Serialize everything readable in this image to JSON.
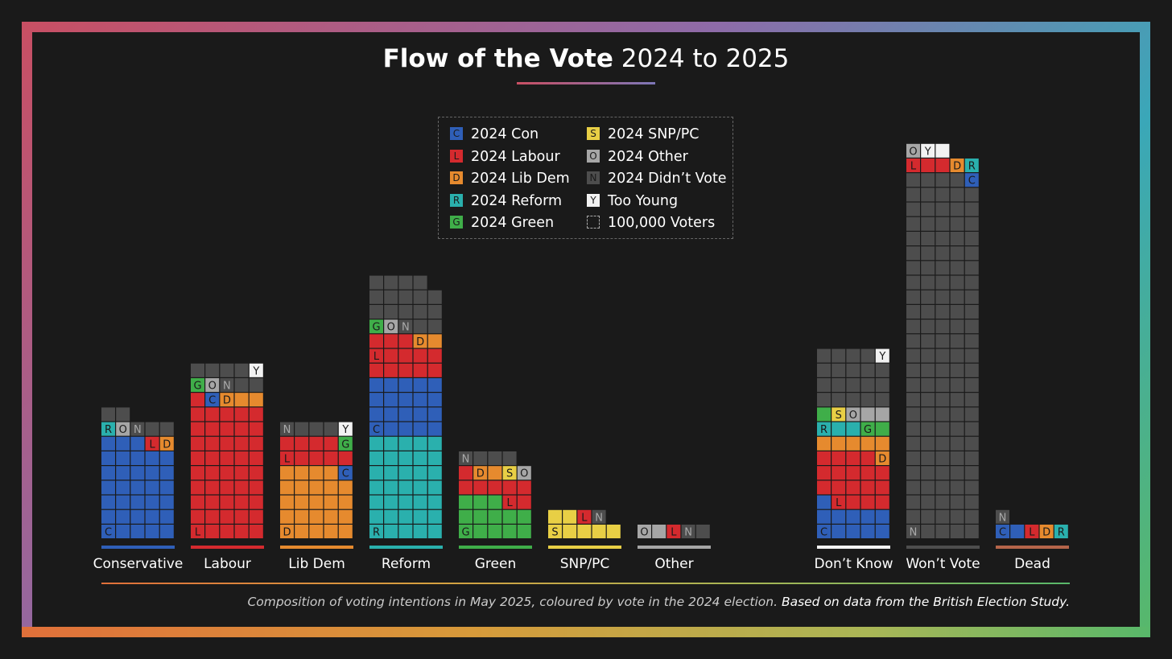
{
  "title": {
    "bold": "Flow of the Vote",
    "rest": "2024 to 2025"
  },
  "legend": [
    {
      "code": "C",
      "label": "2024 Con",
      "color": "#2f5fb8"
    },
    {
      "code": "L",
      "label": "2024 Labour",
      "color": "#d42a2e"
    },
    {
      "code": "D",
      "label": "2024 Lib Dem",
      "color": "#e68a2e"
    },
    {
      "code": "R",
      "label": "2024 Reform",
      "color": "#2ab0ad"
    },
    {
      "code": "G",
      "label": "2024 Green",
      "color": "#3fae49"
    },
    {
      "code": "S",
      "label": "2024 SNP/PC",
      "color": "#e8cf45"
    },
    {
      "code": "O",
      "label": "2024 Other",
      "color": "#a6a6a6"
    },
    {
      "code": "N",
      "label": "2024 Didn’t Vote",
      "color": "#4d4d4d"
    },
    {
      "code": "Y",
      "label": "Too Young",
      "color": "#f2f2f2"
    },
    {
      "code": "",
      "label": "100,000 Voters",
      "color": ""
    }
  ],
  "chart_data": {
    "type": "waffle",
    "unit": "100,000 Voters",
    "categories": [
      {
        "name": "Conservative",
        "bar_color": "#2f5fb8",
        "rows": [
          "CCCCC",
          "CCCCC",
          "CCCCC",
          "CCCCC",
          "CCCCC",
          "CCCCC",
          "CCCLD",
          "RONNN",
          "NN"
        ],
        "labels": {
          "0": "C",
          "6": "L D",
          "7": "R O N"
        }
      },
      {
        "name": "Labour",
        "bar_color": "#d42a2e",
        "rows": [
          "LLLLL",
          "LLLLL",
          "LLLLL",
          "LLLLL",
          "LLLLL",
          "LLLLL",
          "LLLLL",
          "LLLLL",
          "LLLLL",
          "LCDDD",
          "GONNN",
          "NNNNY"
        ],
        "labels": {
          "0": "L",
          "9": "C D",
          "10": "G O N",
          "11": "Y"
        }
      },
      {
        "name": "Lib Dem",
        "bar_color": "#e68a2e",
        "rows": [
          "DDDDD",
          "DDDDD",
          "DDDDD",
          "DDDDD",
          "DDDDC",
          "LLLLL",
          "LLLLG",
          "NNNNY"
        ],
        "labels": {
          "0": "D",
          "4": "C",
          "5": "L",
          "6": "G",
          "7": "N Y"
        }
      },
      {
        "name": "Reform",
        "bar_color": "#2ab0ad",
        "rows": [
          "RRRRR",
          "RRRRR",
          "RRRRR",
          "RRRRR",
          "RRRRR",
          "RRRRR",
          "RRRRR",
          "CCCCC",
          "CCCCC",
          "CCCCC",
          "CCCCC",
          "LLLLL",
          "LLLLL",
          "LLLDD",
          "GONNN",
          "NNNNN",
          "NNNNN",
          "NNNN"
        ],
        "labels": {
          "0": "R",
          "7": "C",
          "12": "L",
          "13": "D",
          "14": "G O N"
        }
      },
      {
        "name": "Green",
        "bar_color": "#3fae49",
        "rows": [
          "GGGGG",
          "GGGGG",
          "GGGLL",
          "LLLLL",
          "LDDSO",
          "NNNN"
        ],
        "labels": {
          "0": "G",
          "2": "L",
          "4": "D S O",
          "5": "N"
        }
      },
      {
        "name": "SNP/PC",
        "bar_color": "#e8cf45",
        "rows": [
          "SSSSS",
          "SSLN"
        ],
        "labels": {
          "0": "S",
          "1": "L N"
        }
      },
      {
        "name": "Other",
        "bar_color": "#a6a6a6",
        "rows": [
          "OOLNN"
        ],
        "labels": {
          "0": "O L N"
        }
      },
      {
        "name": "Don’t Know",
        "bar_color": "#f2f2f2",
        "rows": [
          "CCCCC",
          "CCCCC",
          "CLLLL",
          "LLLLL",
          "LLLLL",
          "LLLLD",
          "DDDDD",
          "RRRGG",
          "GSOOO",
          "NNNNN",
          "NNNNN",
          "NNNNN",
          "NNNNY"
        ],
        "labels": {
          "0": "C",
          "2": "L",
          "5": "D",
          "7": "R G",
          "8": "S O",
          "12": "Y"
        }
      },
      {
        "name": "Won’t Vote",
        "bar_color": "#4d4d4d",
        "rows": [
          "NNNNN",
          "NNNNN",
          "NNNNN",
          "NNNNN",
          "NNNNN",
          "NNNNN",
          "NNNNN",
          "NNNNN",
          "NNNNN",
          "NNNNN",
          "NNNNN",
          "NNNNN",
          "NNNNN",
          "NNNNN",
          "NNNNN",
          "NNNNN",
          "NNNNN",
          "NNNNN",
          "NNNNN",
          "NNNNN",
          "NNNNN",
          "NNNNN",
          "NNNNN",
          "NNNNN",
          "NNNNC",
          "LLLDR",
          "OYY"
        ],
        "labels": {
          "0": "N",
          "24": "C",
          "25": "L D R",
          "26": "O Y"
        }
      },
      {
        "name": "Dead",
        "bar_color": "#b5654a",
        "rows": [
          "CCLDR",
          "N"
        ],
        "labels": {
          "0": "C L D R",
          "1": "N"
        }
      }
    ]
  },
  "caption": {
    "italic": "Composition of voting intentions in May 2025, coloured by vote in the 2024 election.",
    "source": "Based on data from the British Election Study."
  }
}
